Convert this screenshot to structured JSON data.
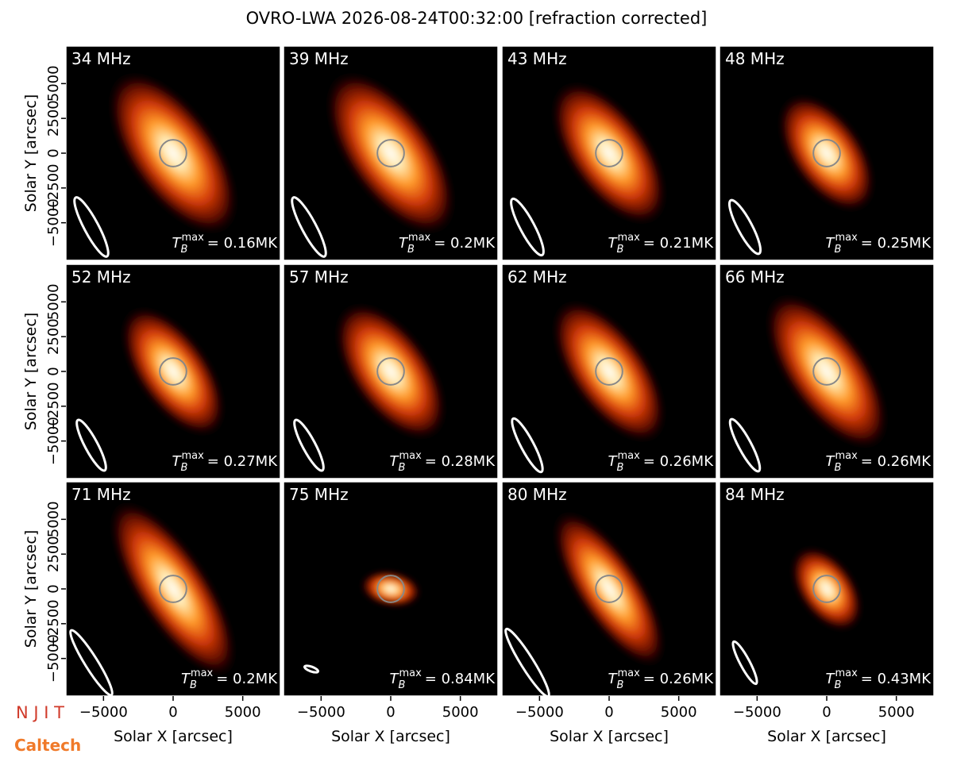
{
  "chart_data": {
    "type": "image-grid",
    "title": "OVRO-LWA 2026-08-24T00:32:00 [refraction corrected]",
    "xlabel": "Solar X [arcsec]",
    "ylabel": "Solar Y [arcsec]",
    "xlim": [
      -7700,
      7700
    ],
    "ylim": [
      -7700,
      7700
    ],
    "xticks": [
      {
        "value": -5000,
        "label": "−5000"
      },
      0,
      5000
    ],
    "yticks": [
      {
        "value": -5000,
        "label": "−5000"
      },
      {
        "value": -2500,
        "label": "−2500"
      },
      0,
      2500,
      5000
    ],
    "tb_symbol": "T",
    "tb_sub": "B",
    "tb_sup": "max",
    "panels": [
      {
        "title": "34 MHz",
        "tb_label": "= 0.16MK"
      },
      {
        "title": "39 MHz",
        "tb_label": "= 0.2MK"
      },
      {
        "title": "43 MHz",
        "tb_label": "= 0.21MK"
      },
      {
        "title": "48 MHz",
        "tb_label": "= 0.25MK"
      },
      {
        "title": "52 MHz",
        "tb_label": "= 0.27MK"
      },
      {
        "title": "57 MHz",
        "tb_label": "= 0.28MK"
      },
      {
        "title": "62 MHz",
        "tb_label": "= 0.26MK"
      },
      {
        "title": "66 MHz",
        "tb_label": "= 0.26MK"
      },
      {
        "title": "71 MHz",
        "tb_label": "= 0.2MK"
      },
      {
        "title": "75 MHz",
        "tb_label": "= 0.84MK"
      },
      {
        "title": "80 MHz",
        "tb_label": "= 0.26MK"
      },
      {
        "title": "84 MHz",
        "tb_label": "= 0.43MK"
      }
    ]
  },
  "logos": [
    "N J I T",
    "Caltech"
  ]
}
